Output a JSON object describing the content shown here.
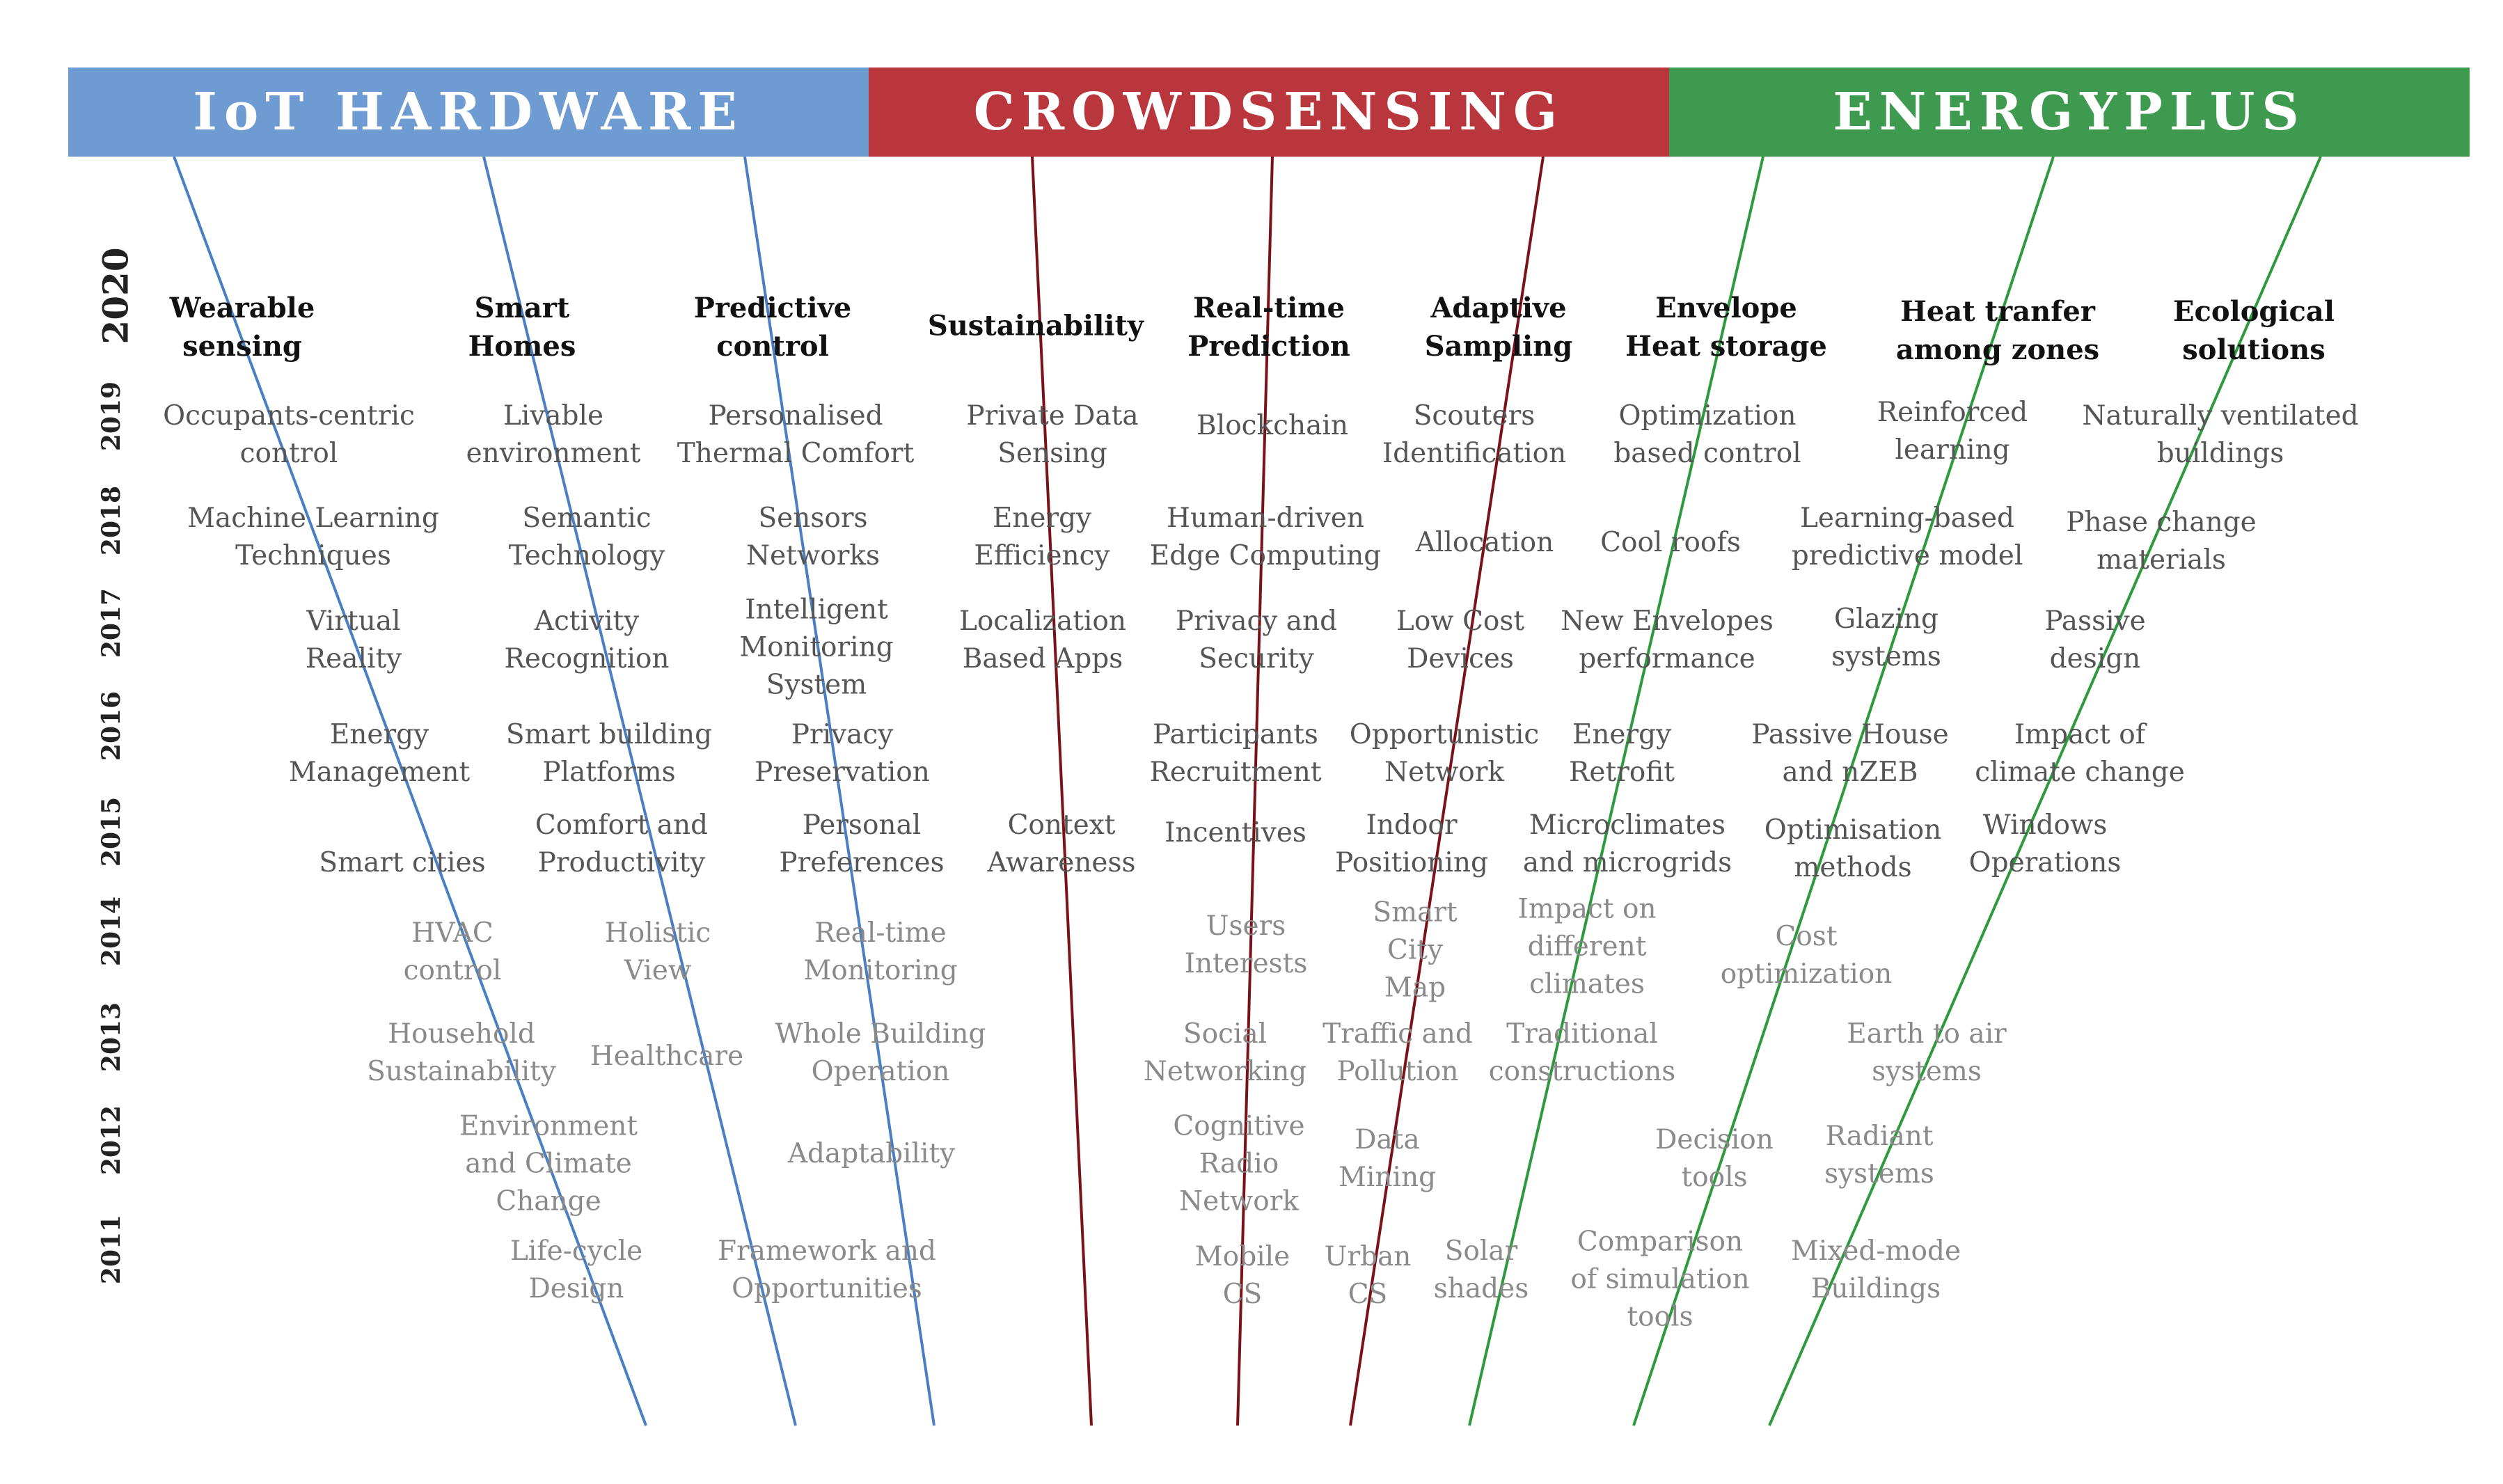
{
  "headers": [
    {
      "id": "iot",
      "label": "IoT HARDWARE",
      "color": "#6f9bd3"
    },
    {
      "id": "crowd",
      "label": "CROWDSENSING",
      "color": "#b9363d"
    },
    {
      "id": "energy",
      "label": "ENERGYPLUS",
      "color": "#3d9a4f"
    }
  ],
  "years": [
    "2020",
    "2019",
    "2018",
    "2017",
    "2016",
    "2015",
    "2014",
    "2013",
    "2012",
    "2011"
  ],
  "topics": {
    "y2020": [
      "Wearable\nsensing",
      "Smart\nHomes",
      "Predictive\ncontrol",
      "Sustainability",
      "Real-time\nPrediction",
      "Adaptive\nSampling",
      "Envelope\nHeat storage",
      "Heat tranfer\namong zones",
      "Ecological\nsolutions"
    ],
    "y2019": [
      "Occupants-centric\ncontrol",
      "Livable\nenvironment",
      "Personalised\nThermal Comfort",
      "Private Data\nSensing",
      "Blockchain",
      "Scouters\nIdentification",
      "Optimization\nbased control",
      "Reinforced\nlearning",
      "Naturally ventilated\nbuildings"
    ],
    "y2018": [
      "Machine Learning\nTechniques",
      "Semantic\nTechnology",
      "Sensors\nNetworks",
      "Energy\nEfficiency",
      "Human-driven\nEdge Computing",
      "Allocation",
      "Cool roofs",
      "Learning-based\npredictive model",
      "Phase change\nmaterials"
    ],
    "y2017": [
      "Virtual\nReality",
      "Activity\nRecognition",
      "Intelligent\nMonitoring\nSystem",
      "Localization\nBased Apps",
      "Privacy and\nSecurity",
      "Low Cost\nDevices",
      "New Envelopes\nperformance",
      "Glazing\nsystems",
      "Passive\ndesign"
    ],
    "y2016": [
      "Energy\nManagement",
      "Smart building\nPlatforms",
      "Privacy\nPreservation",
      "Participants\nRecruitment",
      "Opportunistic\nNetwork",
      "Energy\nRetrofit",
      "Passive House\nand nZEB",
      "Impact of\nclimate change"
    ],
    "y2015": [
      "Smart cities",
      "Comfort and\nProductivity",
      "Personal\nPreferences",
      "Context\nAwareness",
      "Incentives",
      "Indoor\nPositioning",
      "Microclimates\nand microgrids",
      "Optimisation\nmethods",
      "Windows\nOperations"
    ],
    "y2014": [
      "HVAC\ncontrol",
      "Holistic\nView",
      "Real-time\nMonitoring",
      "Users\nInterests",
      "Smart\nCity\nMap",
      "Impact on\ndifferent\nclimates",
      "Cost\noptimization"
    ],
    "y2013": [
      "Household\nSustainability",
      "Healthcare",
      "Whole Building\nOperation",
      "Social\nNetworking",
      "Traffic and\nPollution",
      "Traditional\nconstructions",
      "Earth to air\nsystems"
    ],
    "y2012": [
      "Environment\nand Climate\nChange",
      "Adaptability",
      "Cognitive\nRadio\nNetwork",
      "Data\nMining",
      "Decision\ntools",
      "Radiant\nsystems"
    ],
    "y2011": [
      "Life-cycle\nDesign",
      "Framework and\nOpportunities",
      "Mobile\nCS",
      "Urban\nCS",
      "Solar\nshades",
      "Comparison\nof simulation\ntools",
      "Mixed-mode\nBuildings"
    ]
  }
}
